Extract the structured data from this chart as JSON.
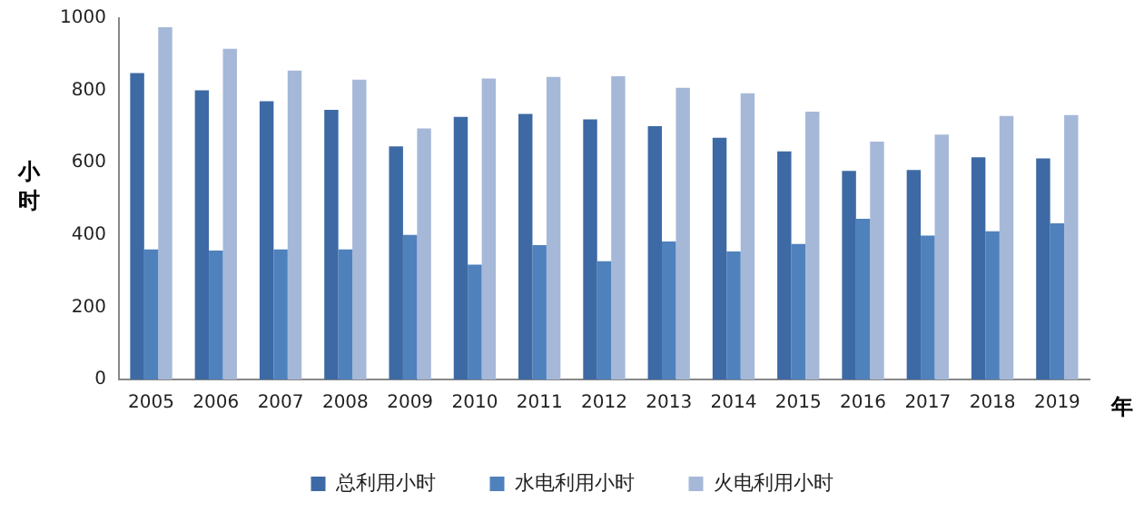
{
  "chart_data": {
    "type": "bar",
    "xlabel": "年",
    "ylabel": "小时",
    "categories": [
      "2005",
      "2006",
      "2007",
      "2008",
      "2009",
      "2010",
      "2011",
      "2012",
      "2013",
      "2014",
      "2015",
      "2016",
      "2017",
      "2018",
      "2019"
    ],
    "series": [
      {
        "name": "总利用小时",
        "color": "#3d6aa4",
        "values": [
          848,
          800,
          770,
          746,
          645,
          727,
          735,
          720,
          701,
          669,
          631,
          577,
          580,
          615,
          612
        ]
      },
      {
        "name": "水电利用小时",
        "color": "#4f81bd",
        "values": [
          360,
          357,
          360,
          360,
          400,
          318,
          372,
          327,
          382,
          354,
          375,
          445,
          398,
          410,
          432
        ]
      },
      {
        "name": "火电利用小时",
        "color": "#a6b8d8",
        "values": [
          975,
          915,
          855,
          830,
          695,
          833,
          837,
          839,
          807,
          792,
          741,
          658,
          678,
          729,
          732
        ]
      }
    ],
    "ylim": [
      0,
      1000
    ],
    "yticks": [
      0,
      200,
      400,
      600,
      800,
      1000
    ],
    "grid": false,
    "legend": "bottom"
  }
}
